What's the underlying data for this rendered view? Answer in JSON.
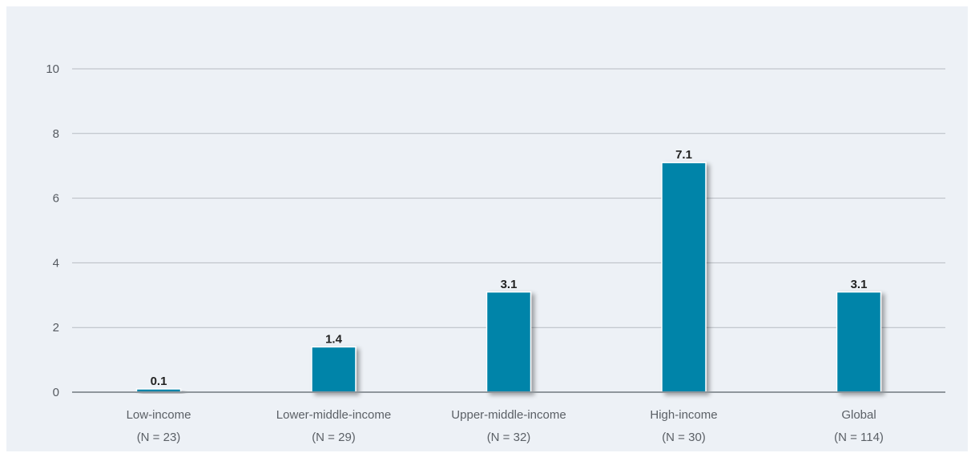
{
  "chart_data": {
    "type": "bar",
    "title": "",
    "xlabel": "",
    "ylabel": "",
    "categories": [
      {
        "name": "Low-income",
        "n": "(N = 23)"
      },
      {
        "name": "Lower-middle-income",
        "n": "(N = 29)"
      },
      {
        "name": "Upper-middle-income",
        "n": "(N = 32)"
      },
      {
        "name": "High-income",
        "n": "(N = 30)"
      },
      {
        "name": "Global",
        "n": "(N = 114)"
      }
    ],
    "values": [
      0.1,
      1.4,
      3.1,
      7.1,
      3.1
    ],
    "value_labels": [
      "0.1",
      "1.4",
      "3.1",
      "7.1",
      "3.1"
    ],
    "ylim": [
      0,
      10
    ],
    "yticks": [
      0,
      2,
      4,
      6,
      8,
      10
    ],
    "grid": true,
    "colors": {
      "bar": "#0084a9",
      "background": "#edf1f6",
      "gridline": "#b7bcc2",
      "axis": "#8f969c"
    }
  }
}
